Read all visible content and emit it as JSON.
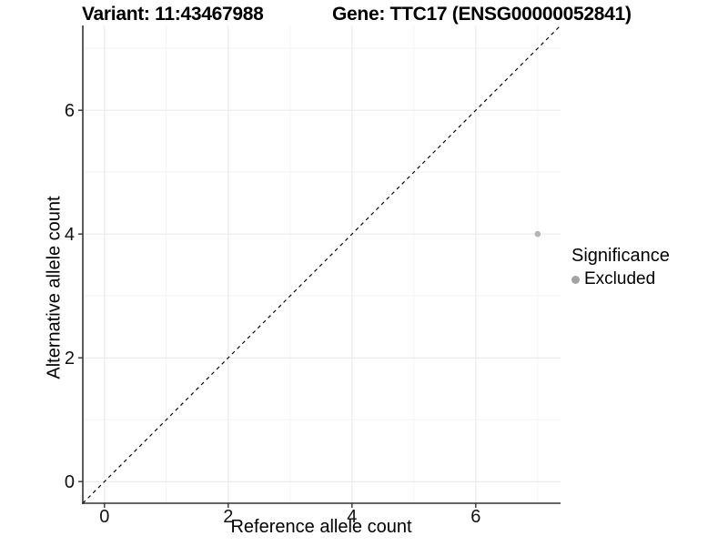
{
  "chart_data": {
    "type": "scatter",
    "title_left": "Variant: 11:43467988",
    "title_right": "Gene: TTC17 (ENSG00000052841)",
    "xlabel": "Reference allele count",
    "ylabel": "Alternative allele count",
    "xlim": [
      -0.35,
      7.37
    ],
    "ylim": [
      -0.35,
      7.37
    ],
    "x_breaks": [
      0,
      2,
      4,
      6
    ],
    "y_breaks": [
      0,
      2,
      4,
      6
    ],
    "x_minor_breaks": [
      1,
      3,
      5,
      7
    ],
    "y_minor_breaks": [
      1,
      3,
      5,
      7
    ],
    "grid": true,
    "points": [
      {
        "x": 7,
        "y": 4,
        "series": "Excluded"
      }
    ],
    "identity_line": {
      "style": "dashed",
      "from": [
        -0.35,
        -0.35
      ],
      "to": [
        7.37,
        7.37
      ]
    },
    "legend": {
      "title": "Significance",
      "position": "right",
      "items": [
        {
          "label": "Excluded",
          "color": "#a3a3a3"
        }
      ]
    },
    "colors": {
      "point": "#b4b4b4",
      "grid_major": "#e7e7e7",
      "grid_minor": "#f3f3f3",
      "axis_line": "#333333",
      "tick_text": "#111111",
      "identity_line": "#000000",
      "background": "#ffffff"
    }
  }
}
